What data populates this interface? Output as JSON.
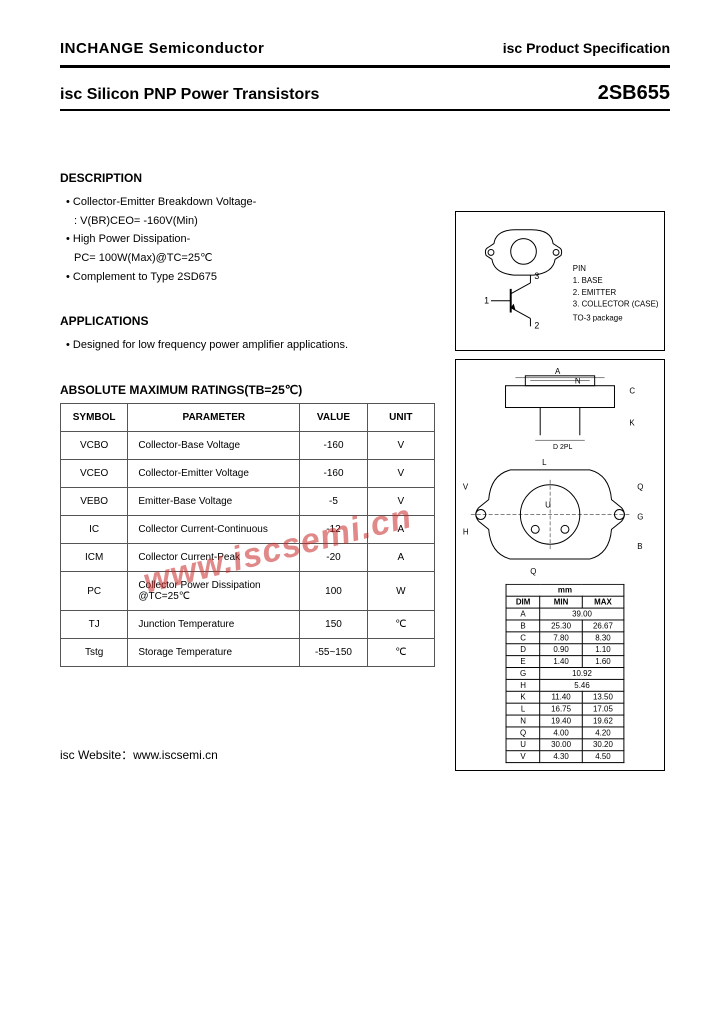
{
  "header": {
    "company": "INCHANGE Semiconductor",
    "spec": "isc Product Specification"
  },
  "title": {
    "product": "isc Silicon PNP Power Transistors",
    "part": "2SB655"
  },
  "description": {
    "heading": "DESCRIPTION",
    "lines": [
      "Collector-Emitter Breakdown Voltage-",
      ": V(BR)CEO= -160V(Min)",
      "High Power Dissipation-",
      "PC= 100W(Max)@TC=25℃",
      "Complement to Type 2SD675"
    ]
  },
  "applications": {
    "heading": "APPLICATIONS",
    "text": "Designed for low frequency power amplifier applications."
  },
  "ratings": {
    "heading": "ABSOLUTE MAXIMUM RATINGS(TB=25℃)",
    "columns": [
      "SYMBOL",
      "PARAMETER",
      "VALUE",
      "UNIT"
    ],
    "rows": [
      {
        "sym": "VCBO",
        "param": "Collector-Base Voltage",
        "val": "-160",
        "unit": "V"
      },
      {
        "sym": "VCEO",
        "param": "Collector-Emitter Voltage",
        "val": "-160",
        "unit": "V"
      },
      {
        "sym": "VEBO",
        "param": "Emitter-Base Voltage",
        "val": "-5",
        "unit": "V"
      },
      {
        "sym": "IC",
        "param": "Collector Current-Continuous",
        "val": "-12",
        "unit": "A"
      },
      {
        "sym": "ICM",
        "param": "Collector Current-Peak",
        "val": "-20",
        "unit": "A"
      },
      {
        "sym": "PC",
        "param": "Collector Power Dissipation\n@TC=25℃",
        "val": "100",
        "unit": "W"
      },
      {
        "sym": "TJ",
        "param": "Junction Temperature",
        "val": "150",
        "unit": "℃"
      },
      {
        "sym": "Tstg",
        "param": "Storage Temperature",
        "val": "-55~150",
        "unit": "℃"
      }
    ]
  },
  "pinout": {
    "heading": "PIN",
    "pins": [
      "1. BASE",
      "2. EMITTER",
      "3. COLLECTOR (CASE)"
    ],
    "package": "TO-3 package"
  },
  "dimensions": {
    "unit": "mm",
    "columns": [
      "DIM",
      "MIN",
      "MAX"
    ],
    "rows": [
      {
        "d": "A",
        "min": "39.00",
        "max": ""
      },
      {
        "d": "B",
        "min": "25.30",
        "max": "26.67"
      },
      {
        "d": "C",
        "min": "7.80",
        "max": "8.30"
      },
      {
        "d": "D",
        "min": "0.90",
        "max": "1.10"
      },
      {
        "d": "E",
        "min": "1.40",
        "max": "1.60"
      },
      {
        "d": "G",
        "min": "10.92",
        "max": ""
      },
      {
        "d": "H",
        "min": "5.46",
        "max": ""
      },
      {
        "d": "K",
        "min": "11.40",
        "max": "13.50"
      },
      {
        "d": "L",
        "min": "16.75",
        "max": "17.05"
      },
      {
        "d": "N",
        "min": "19.40",
        "max": "19.62"
      },
      {
        "d": "Q",
        "min": "4.00",
        "max": "4.20"
      },
      {
        "d": "U",
        "min": "30.00",
        "max": "30.20"
      },
      {
        "d": "V",
        "min": "4.30",
        "max": "4.50"
      }
    ]
  },
  "watermark": "www.iscsemi.cn",
  "footer": {
    "label": "isc Website：",
    "url": "www.iscsemi.cn"
  }
}
